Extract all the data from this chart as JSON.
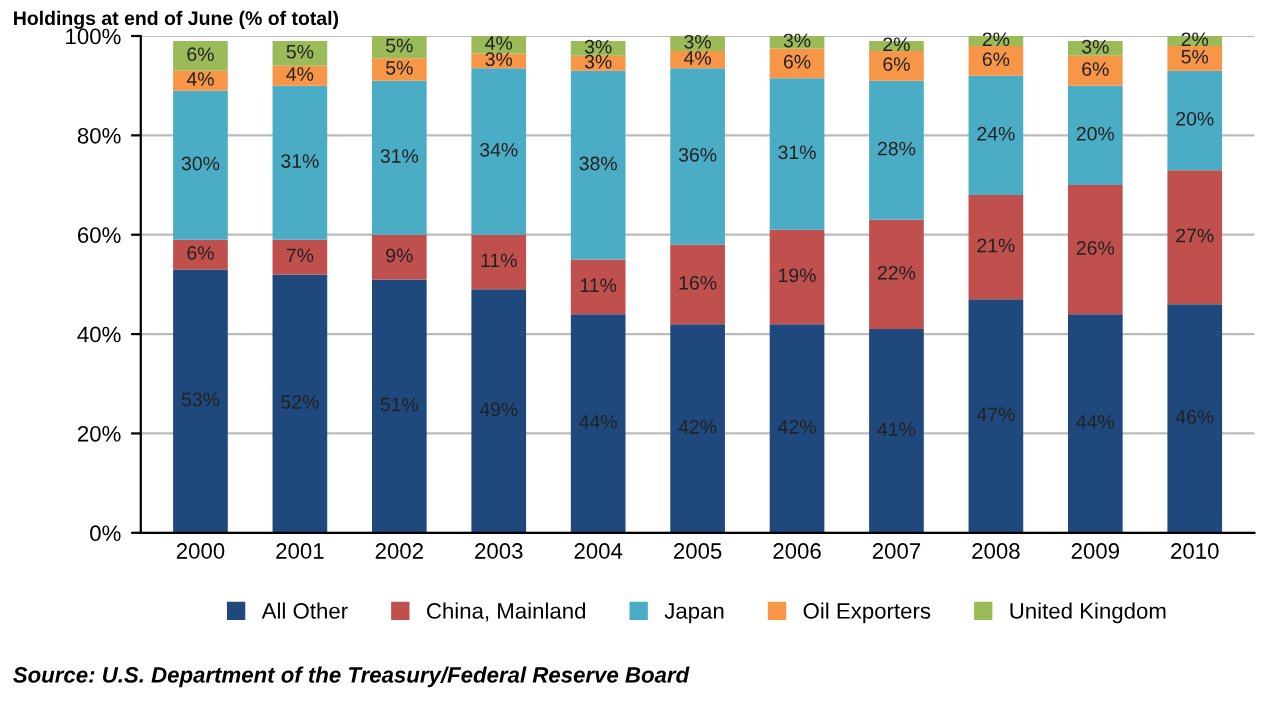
{
  "chart_data": {
    "type": "bar",
    "stacked": true,
    "title": "Holdings at end of June (% of total)",
    "categories": [
      "2000",
      "2001",
      "2002",
      "2003",
      "2004",
      "2005",
      "2006",
      "2007",
      "2008",
      "2009",
      "2010"
    ],
    "series": [
      {
        "name": "All Other",
        "color": "#1f497d",
        "values": [
          53,
          52,
          51,
          49,
          44,
          42,
          42,
          41,
          47,
          44,
          46
        ],
        "value_labels": [
          "53%",
          "52%",
          "51%",
          "49%",
          "44%",
          "42%",
          "42%",
          "41%",
          "47%",
          "44%",
          "46%"
        ]
      },
      {
        "name": "China, Mainland",
        "color": "#c0504d",
        "values": [
          6,
          7,
          9,
          11,
          11,
          16,
          19,
          22,
          21,
          26,
          27
        ],
        "value_labels": [
          "6%",
          "7%",
          "9%",
          "11%",
          "11%",
          "16%",
          "19%",
          "22%",
          "21%",
          "26%",
          "27%"
        ]
      },
      {
        "name": "Japan",
        "color": "#4bacc6",
        "values": [
          30,
          31,
          31,
          33.5,
          38,
          35.5,
          30.5,
          28,
          24,
          20,
          20
        ],
        "value_labels": [
          "30%",
          "31%",
          "31%",
          "34%",
          "38%",
          "36%",
          "31%",
          "28%",
          "24%",
          "20%",
          "20%"
        ]
      },
      {
        "name": "Oil Exporters",
        "color": "#f79646",
        "values": [
          4,
          4,
          4.5,
          3,
          3,
          3.5,
          6,
          6,
          6,
          6,
          5
        ],
        "value_labels": [
          "4%",
          "4%",
          "5%",
          "3%",
          "3%",
          "4%",
          "6%",
          "6%",
          "6%",
          "6%",
          "5%"
        ]
      },
      {
        "name": "United Kingdom",
        "color": "#9bbb59",
        "values": [
          6,
          5,
          4.5,
          3.5,
          3,
          3,
          2.5,
          2,
          2,
          3,
          2
        ],
        "value_labels": [
          "6%",
          "5%",
          "5%",
          "4%",
          "3%",
          "3%",
          "3%",
          "2%",
          "2%",
          "3%",
          "2%"
        ]
      }
    ],
    "ylim": [
      0,
      100
    ],
    "yticks": [
      {
        "value": 0,
        "label": "0%"
      },
      {
        "value": 20,
        "label": "20%"
      },
      {
        "value": 40,
        "label": "40%"
      },
      {
        "value": 60,
        "label": "60%"
      },
      {
        "value": 80,
        "label": "80%"
      },
      {
        "value": 100,
        "label": "100%"
      }
    ],
    "grid": "y",
    "legend": "bottom",
    "annotations": [
      "Source: U.S. Department of the Treasury/Federal Reserve Board"
    ]
  }
}
